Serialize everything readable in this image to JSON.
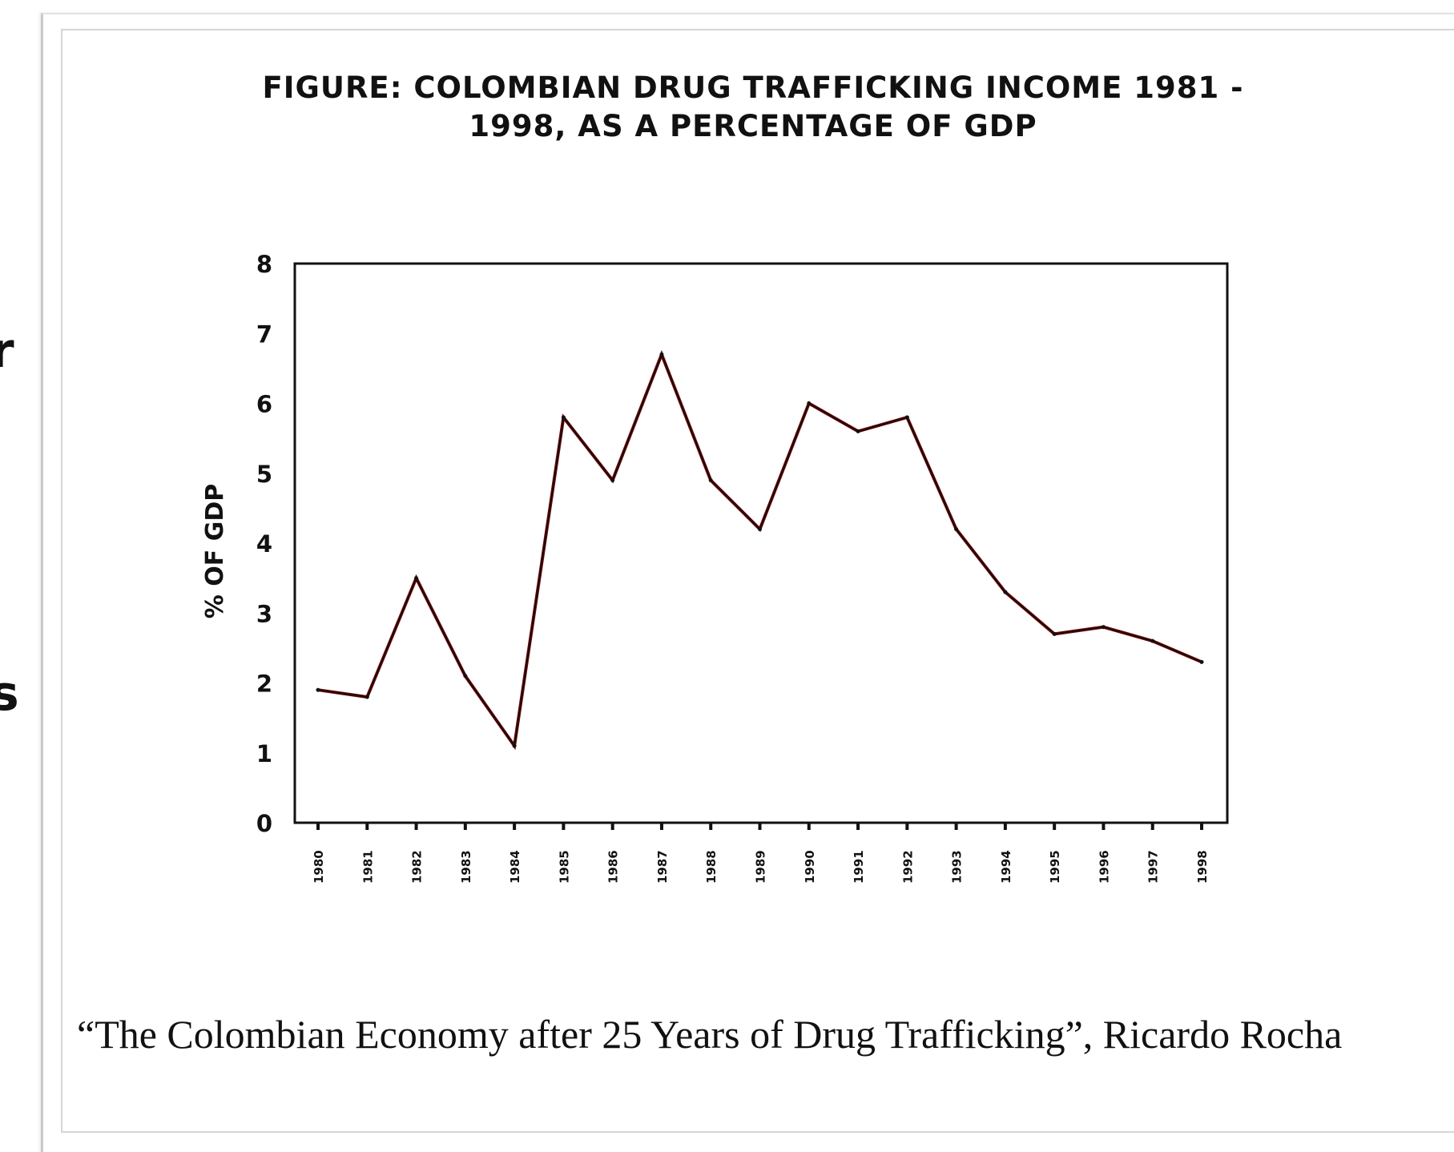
{
  "chart_data": {
    "type": "line",
    "title": "FIGURE: COLOMBIAN DRUG TRAFFICKING INCOME 1981 - 1998, AS A PERCENTAGE OF GDP",
    "xlabel": "",
    "ylabel": "% OF GDP",
    "categories": [
      "1980",
      "1981",
      "1982",
      "1983",
      "1984",
      "1985",
      "1986",
      "1987",
      "1988",
      "1989",
      "1990",
      "1991",
      "1992",
      "1993",
      "1994",
      "1995",
      "1996",
      "1997",
      "1998"
    ],
    "y_ticks": [
      "0",
      "1",
      "2",
      "3",
      "4",
      "5",
      "6",
      "7",
      "8"
    ],
    "ylim": [
      0,
      8
    ],
    "grid": false,
    "legend": "none",
    "series": [
      {
        "color": "#8b0000",
        "values": [
          1.9,
          1.8,
          3.5,
          2.1,
          1.1,
          5.8,
          4.9,
          6.7,
          4.9,
          4.2,
          6.0,
          5.6,
          5.8,
          4.2,
          3.3,
          2.7,
          2.8,
          2.6,
          2.3
        ]
      }
    ]
  },
  "caption": "“The Colombian Economy after 25 Years of Drug Trafficking”, Ricardo Rocha",
  "background_text": {
    "fragment_1": "r",
    "fragment_2": "s"
  }
}
